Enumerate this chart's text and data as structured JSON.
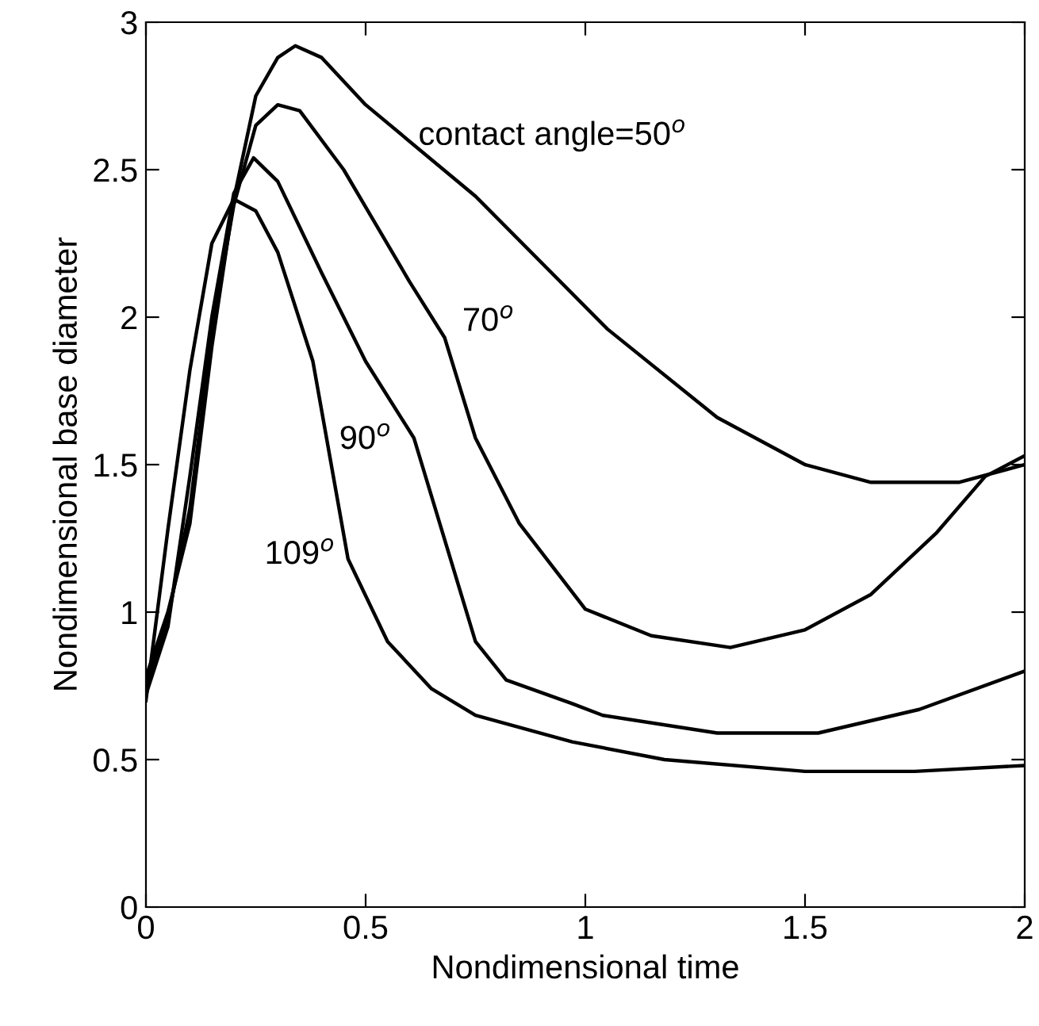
{
  "chart_data": {
    "type": "line",
    "xlabel": "Nondimensional time",
    "ylabel": "Nondimensional base diameter",
    "xlim": [
      0,
      2
    ],
    "ylim": [
      0,
      3
    ],
    "xticks": [
      0,
      0.5,
      1,
      1.5,
      2
    ],
    "yticks": [
      0,
      0.5,
      1,
      1.5,
      2,
      2.5,
      3
    ],
    "grid": false,
    "legend": false,
    "marker": "none",
    "line_style": "solid",
    "series": [
      {
        "name": "contact angle=50$^{o}$",
        "color": "#000000",
        "x": [
          0,
          0.05,
          0.1,
          0.15,
          0.2,
          0.25,
          0.3,
          0.34,
          0.4,
          0.5,
          0.75,
          1.05,
          1.3,
          1.5,
          1.65,
          1.85,
          2
        ],
        "values": [
          0.78,
          1.0,
          1.3,
          1.9,
          2.4,
          2.75,
          2.88,
          2.92,
          2.88,
          2.72,
          2.41,
          1.96,
          1.66,
          1.5,
          1.44,
          1.44,
          1.5
        ]
      },
      {
        "name": "70$^{o}$",
        "color": "#000000",
        "x": [
          0,
          0.05,
          0.1,
          0.15,
          0.2,
          0.25,
          0.3,
          0.35,
          0.45,
          0.6,
          0.68,
          0.75,
          0.85,
          1.0,
          1.15,
          1.33,
          1.5,
          1.65,
          1.8,
          1.91,
          2
        ],
        "values": [
          0.75,
          0.98,
          1.35,
          1.95,
          2.38,
          2.65,
          2.72,
          2.7,
          2.5,
          2.12,
          1.93,
          1.59,
          1.3,
          1.01,
          0.92,
          0.88,
          0.94,
          1.06,
          1.27,
          1.46,
          1.53
        ]
      },
      {
        "name": "90$^{o}$",
        "color": "#000000",
        "x": [
          0,
          0.05,
          0.1,
          0.15,
          0.2,
          0.245,
          0.3,
          0.4,
          0.5,
          0.61,
          0.75,
          0.82,
          0.97,
          1.04,
          1.3,
          1.53,
          1.76,
          2
        ],
        "values": [
          0.72,
          0.95,
          1.46,
          2.0,
          2.42,
          2.54,
          2.46,
          2.15,
          1.85,
          1.59,
          0.9,
          0.77,
          0.69,
          0.65,
          0.59,
          0.59,
          0.67,
          0.8
        ]
      },
      {
        "name": "109$^{o}$",
        "color": "#000000",
        "x": [
          0,
          0.05,
          0.1,
          0.15,
          0.2,
          0.25,
          0.3,
          0.38,
          0.46,
          0.55,
          0.65,
          0.75,
          0.97,
          1.18,
          1.5,
          1.75,
          2
        ],
        "values": [
          0.7,
          1.28,
          1.82,
          2.25,
          2.4,
          2.36,
          2.22,
          1.85,
          1.18,
          0.9,
          0.74,
          0.65,
          0.56,
          0.5,
          0.46,
          0.46,
          0.48
        ]
      }
    ]
  }
}
